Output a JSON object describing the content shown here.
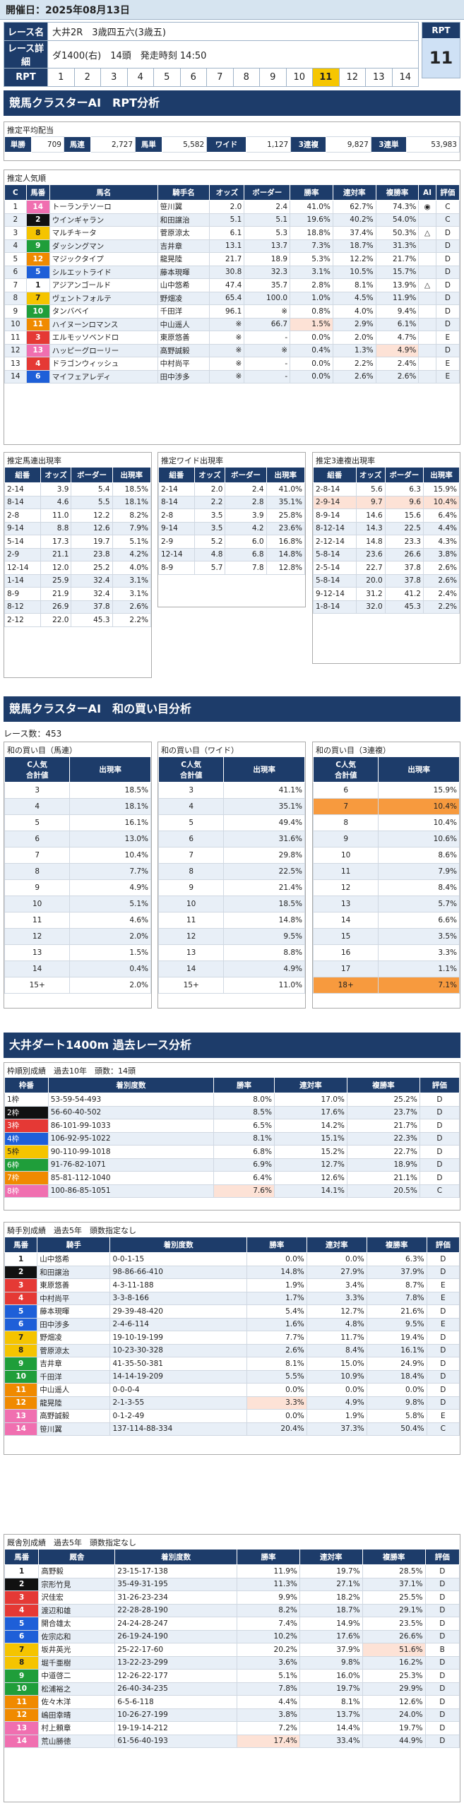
{
  "date_line": "開催日：2025年08月13日",
  "race": {
    "label_name": "レース名",
    "name": "大井2R　3歳四五六(3歳五)",
    "label_detail": "レース詳細",
    "detail": "ダ1400(右)　14頭　発走時刻 14:50",
    "label_rpt": "RPT",
    "nums": [
      "1",
      "2",
      "3",
      "4",
      "5",
      "6",
      "7",
      "8",
      "9",
      "10",
      "11",
      "12",
      "13",
      "14"
    ],
    "selected": "11",
    "rpt_head": "RPT",
    "rpt_value": "11"
  },
  "s1": {
    "title": "競馬クラスターAI　RPT分析",
    "pay_title": "推定平均配当",
    "payouts": [
      {
        "label": "単勝",
        "value": "709"
      },
      {
        "label": "馬連",
        "value": "2,727"
      },
      {
        "label": "馬単",
        "value": "5,582"
      },
      {
        "label": "ワイド",
        "value": "1,127"
      },
      {
        "label": "3連複",
        "value": "9,827"
      },
      {
        "label": "3連単",
        "value": "53,983"
      }
    ],
    "pop_title": "推定人気順",
    "pop_headers": [
      "C",
      "馬番",
      "馬名",
      "騎手名",
      "オッズ",
      "ボーダー",
      "勝率",
      "連対率",
      "複勝率",
      "AI",
      "評価"
    ],
    "pop_rows": [
      [
        "1",
        "14",
        "トーランテソーロ",
        "笹川翼",
        "2.0",
        "2.4",
        "41.0%",
        "62.7%",
        "74.3%",
        "◉",
        "C"
      ],
      [
        "2",
        "2",
        "ウインギャラン",
        "和田譲治",
        "5.1",
        "5.1",
        "19.6%",
        "40.2%",
        "54.0%",
        "",
        "C"
      ],
      [
        "3",
        "8",
        "マルチキータ",
        "菅原涼太",
        "6.1",
        "5.3",
        "18.8%",
        "37.4%",
        "50.3%",
        "△",
        "D"
      ],
      [
        "4",
        "9",
        "ダッシングマン",
        "吉井章",
        "13.1",
        "13.7",
        "7.3%",
        "18.7%",
        "31.3%",
        "",
        "D"
      ],
      [
        "5",
        "12",
        "マジックタイプ",
        "龍晃陸",
        "21.7",
        "18.9",
        "5.3%",
        "12.2%",
        "21.7%",
        "",
        "D"
      ],
      [
        "6",
        "5",
        "シルエットライド",
        "藤本現暉",
        "30.8",
        "32.3",
        "3.1%",
        "10.5%",
        "15.7%",
        "",
        "D"
      ],
      [
        "7",
        "1",
        "アジアンゴールド",
        "山中悠希",
        "47.4",
        "35.7",
        "2.8%",
        "8.1%",
        "13.9%",
        "△",
        "D"
      ],
      [
        "8",
        "7",
        "ヴェントフォルテ",
        "野畑凌",
        "65.4",
        "100.0",
        "1.0%",
        "4.5%",
        "11.9%",
        "",
        "D"
      ],
      [
        "9",
        "10",
        "タンバベイ",
        "千田洋",
        "96.1",
        "※",
        "0.8%",
        "4.0%",
        "9.4%",
        "",
        "D"
      ],
      [
        "10",
        "11",
        "ハイヌーンロマンス",
        "中山遥人",
        "※",
        "66.7",
        "1.5%",
        "2.9%",
        "6.1%",
        "",
        "D"
      ],
      [
        "11",
        "3",
        "エルモッソベンドロ",
        "東原悠善",
        "※",
        "-",
        "0.0%",
        "2.0%",
        "4.7%",
        "",
        "E"
      ],
      [
        "12",
        "13",
        "ハッピーグローリー",
        "高野誠毅",
        "※",
        "※",
        "0.4%",
        "1.3%",
        "4.9%",
        "",
        "D"
      ],
      [
        "13",
        "4",
        "ドラゴンウィッシュ",
        "中村尚平",
        "※",
        "-",
        "0.0%",
        "2.2%",
        "2.4%",
        "",
        "E"
      ],
      [
        "14",
        "6",
        "マイフェアレディ",
        "田中涉多",
        "※",
        "-",
        "0.0%",
        "2.6%",
        "2.6%",
        "",
        "E"
      ]
    ],
    "umaren_title": "推定馬連出現率",
    "wide_title": "推定ワイド出現率",
    "trio_title": "推定3連複出現率",
    "pair_headers": [
      "組番",
      "オッズ",
      "ボーダー",
      "出現率"
    ],
    "umaren": [
      [
        "2-14",
        "3.9",
        "5.4",
        "18.5%"
      ],
      [
        "8-14",
        "4.6",
        "5.5",
        "18.1%"
      ],
      [
        "2-8",
        "11.0",
        "12.2",
        "8.2%"
      ],
      [
        "9-14",
        "8.8",
        "12.6",
        "7.9%"
      ],
      [
        "5-14",
        "17.3",
        "19.7",
        "5.1%"
      ],
      [
        "2-9",
        "21.1",
        "23.8",
        "4.2%"
      ],
      [
        "12-14",
        "12.0",
        "25.2",
        "4.0%"
      ],
      [
        "1-14",
        "25.9",
        "32.4",
        "3.1%"
      ],
      [
        "8-9",
        "21.9",
        "32.4",
        "3.1%"
      ],
      [
        "8-12",
        "26.9",
        "37.8",
        "2.6%"
      ],
      [
        "2-12",
        "22.0",
        "45.3",
        "2.2%"
      ]
    ],
    "wide": [
      [
        "2-14",
        "2.0",
        "2.4",
        "41.0%"
      ],
      [
        "8-14",
        "2.2",
        "2.8",
        "35.1%"
      ],
      [
        "2-8",
        "3.5",
        "3.9",
        "25.8%"
      ],
      [
        "9-14",
        "3.5",
        "4.2",
        "23.6%"
      ],
      [
        "2-9",
        "5.2",
        "6.0",
        "16.8%"
      ],
      [
        "12-14",
        "4.8",
        "6.8",
        "14.8%"
      ],
      [
        "8-9",
        "5.7",
        "7.8",
        "12.8%"
      ]
    ],
    "trio": [
      [
        "2-8-14",
        "5.6",
        "6.3",
        "15.9%"
      ],
      [
        "2-9-14",
        "9.7",
        "9.6",
        "10.4%"
      ],
      [
        "8-9-14",
        "14.6",
        "15.6",
        "6.4%"
      ],
      [
        "8-12-14",
        "14.3",
        "22.5",
        "4.4%"
      ],
      [
        "2-12-14",
        "14.8",
        "23.3",
        "4.3%"
      ],
      [
        "5-8-14",
        "23.6",
        "26.6",
        "3.8%"
      ],
      [
        "2-5-14",
        "22.7",
        "37.8",
        "2.6%"
      ],
      [
        "5-8-14",
        "20.0",
        "37.8",
        "2.6%"
      ],
      [
        "9-12-14",
        "31.2",
        "41.2",
        "2.4%"
      ],
      [
        "1-8-14",
        "32.0",
        "45.3",
        "2.2%"
      ]
    ]
  },
  "s2": {
    "title": "競馬クラスターAI　和の買い目分析",
    "count": "レース数：453",
    "t1": "和の買い目（馬連）",
    "t2": "和の買い目（ワイド）",
    "t3": "和の買い目（3連複）",
    "h1": "C人気\n合計値",
    "h2": "出現率",
    "umaren": [
      [
        "3",
        "18.5%"
      ],
      [
        "4",
        "18.1%"
      ],
      [
        "5",
        "16.1%"
      ],
      [
        "6",
        "13.0%"
      ],
      [
        "7",
        "10.4%"
      ],
      [
        "8",
        "7.7%"
      ],
      [
        "9",
        "4.9%"
      ],
      [
        "10",
        "5.1%"
      ],
      [
        "11",
        "4.6%"
      ],
      [
        "12",
        "2.0%"
      ],
      [
        "13",
        "1.5%"
      ],
      [
        "14",
        "0.4%"
      ],
      [
        "15+",
        "2.0%"
      ]
    ],
    "wide": [
      [
        "3",
        "41.1%"
      ],
      [
        "4",
        "35.1%"
      ],
      [
        "5",
        "49.4%"
      ],
      [
        "6",
        "31.6%"
      ],
      [
        "7",
        "29.8%"
      ],
      [
        "8",
        "22.5%"
      ],
      [
        "9",
        "21.4%"
      ],
      [
        "10",
        "18.5%"
      ],
      [
        "11",
        "14.8%"
      ],
      [
        "12",
        "9.5%"
      ],
      [
        "13",
        "8.8%"
      ],
      [
        "14",
        "4.9%"
      ],
      [
        "15+",
        "11.0%"
      ]
    ],
    "trio": [
      [
        "6",
        "15.9%"
      ],
      [
        "7",
        "10.4%"
      ],
      [
        "8",
        "10.4%"
      ],
      [
        "9",
        "10.6%"
      ],
      [
        "10",
        "8.6%"
      ],
      [
        "11",
        "7.9%"
      ],
      [
        "12",
        "8.4%"
      ],
      [
        "13",
        "5.7%"
      ],
      [
        "14",
        "6.6%"
      ],
      [
        "15",
        "3.5%"
      ],
      [
        "16",
        "3.3%"
      ],
      [
        "17",
        "1.1%"
      ],
      [
        "18+",
        "7.1%"
      ]
    ]
  },
  "s3": {
    "title": "大井ダート1400m 過去レース分析",
    "waku_title": "枠順別成績　過去10年　頭数：14頭",
    "waku_headers": [
      "枠番",
      "着別度数",
      "勝率",
      "連対率",
      "複勝率",
      "評価"
    ],
    "waku": [
      [
        "1枠",
        "53-59-54-493",
        "8.0%",
        "17.0%",
        "25.2%",
        "D"
      ],
      [
        "2枠",
        "56-60-40-502",
        "8.5%",
        "17.6%",
        "23.7%",
        "D"
      ],
      [
        "3枠",
        "86-101-99-1033",
        "6.5%",
        "14.2%",
        "21.7%",
        "D"
      ],
      [
        "4枠",
        "106-92-95-1022",
        "8.1%",
        "15.1%",
        "22.3%",
        "D"
      ],
      [
        "5枠",
        "90-110-99-1018",
        "6.8%",
        "15.2%",
        "22.7%",
        "D"
      ],
      [
        "6枠",
        "91-76-82-1071",
        "6.9%",
        "12.7%",
        "18.9%",
        "D"
      ],
      [
        "7枠",
        "85-81-112-1040",
        "6.4%",
        "12.6%",
        "21.1%",
        "D"
      ],
      [
        "8枠",
        "100-86-85-1051",
        "7.6%",
        "14.1%",
        "20.5%",
        "C"
      ]
    ],
    "jockey_title": "騎手別成績　過去5年　頭数指定なし",
    "jockey_headers": [
      "馬番",
      "騎手",
      "着別度数",
      "勝率",
      "連対率",
      "複勝率",
      "評価"
    ],
    "jockey": [
      [
        "1",
        "山中悠希",
        "0-0-1-15",
        "0.0%",
        "0.0%",
        "6.3%",
        "D"
      ],
      [
        "2",
        "和田譲治",
        "98-86-66-410",
        "14.8%",
        "27.9%",
        "37.9%",
        "D"
      ],
      [
        "3",
        "東原悠善",
        "4-3-11-188",
        "1.9%",
        "3.4%",
        "8.7%",
        "E"
      ],
      [
        "4",
        "中村尚平",
        "3-3-8-166",
        "1.7%",
        "3.3%",
        "7.8%",
        "E"
      ],
      [
        "5",
        "藤本現暉",
        "29-39-48-420",
        "5.4%",
        "12.7%",
        "21.6%",
        "D"
      ],
      [
        "6",
        "田中涉多",
        "2-4-6-114",
        "1.6%",
        "4.8%",
        "9.5%",
        "E"
      ],
      [
        "7",
        "野畑凌",
        "19-10-19-199",
        "7.7%",
        "11.7%",
        "19.4%",
        "D"
      ],
      [
        "8",
        "菅原涼太",
        "10-23-30-328",
        "2.6%",
        "8.4%",
        "16.1%",
        "D"
      ],
      [
        "9",
        "吉井章",
        "41-35-50-381",
        "8.1%",
        "15.0%",
        "24.9%",
        "D"
      ],
      [
        "10",
        "千田洋",
        "14-14-19-209",
        "5.5%",
        "10.9%",
        "18.4%",
        "D"
      ],
      [
        "11",
        "中山遥人",
        "0-0-0-4",
        "0.0%",
        "0.0%",
        "0.0%",
        "D"
      ],
      [
        "12",
        "龍晃陸",
        "2-1-3-55",
        "3.3%",
        "4.9%",
        "9.8%",
        "D"
      ],
      [
        "13",
        "高野誠毅",
        "0-1-2-49",
        "0.0%",
        "1.9%",
        "5.8%",
        "E"
      ],
      [
        "14",
        "笹川翼",
        "137-114-88-334",
        "20.4%",
        "37.3%",
        "50.4%",
        "C"
      ]
    ],
    "trainer_title": "厩舎別成績　過去5年　頭数指定なし",
    "trainer_headers": [
      "馬番",
      "厩舎",
      "着別度数",
      "勝率",
      "連対率",
      "複勝率",
      "評価"
    ],
    "trainer": [
      [
        "1",
        "高野毅",
        "23-15-17-138",
        "11.9%",
        "19.7%",
        "28.5%",
        "D"
      ],
      [
        "2",
        "宗形竹見",
        "35-49-31-195",
        "11.3%",
        "27.1%",
        "37.1%",
        "D"
      ],
      [
        "3",
        "沢佳宏",
        "31-26-23-234",
        "9.9%",
        "18.2%",
        "25.5%",
        "D"
      ],
      [
        "4",
        "渡辺和雄",
        "22-28-28-190",
        "8.2%",
        "18.7%",
        "29.1%",
        "D"
      ],
      [
        "5",
        "開合雄太",
        "24-24-28-247",
        "7.4%",
        "14.9%",
        "23.5%",
        "D"
      ],
      [
        "6",
        "佐宗応和",
        "26-19-24-190",
        "10.2%",
        "17.6%",
        "26.6%",
        "D"
      ],
      [
        "7",
        "坂井英光",
        "25-22-17-60",
        "20.2%",
        "37.9%",
        "51.6%",
        "B"
      ],
      [
        "8",
        "堀千亜樹",
        "13-22-23-299",
        "3.6%",
        "9.8%",
        "16.2%",
        "D"
      ],
      [
        "9",
        "中道啓二",
        "12-26-22-177",
        "5.1%",
        "16.0%",
        "25.3%",
        "D"
      ],
      [
        "10",
        "松浦裕之",
        "26-40-34-235",
        "7.8%",
        "19.7%",
        "29.9%",
        "D"
      ],
      [
        "11",
        "佐々木洋",
        "6-5-6-118",
        "4.4%",
        "8.1%",
        "12.6%",
        "D"
      ],
      [
        "12",
        "嶋田幸晴",
        "10-26-27-199",
        "3.8%",
        "13.7%",
        "24.0%",
        "D"
      ],
      [
        "13",
        "村上頼章",
        "19-19-14-212",
        "7.2%",
        "14.4%",
        "19.7%",
        "D"
      ],
      [
        "14",
        "荒山勝徳",
        "61-56-40-193",
        "17.4%",
        "33.4%",
        "44.9%",
        "D"
      ]
    ]
  }
}
